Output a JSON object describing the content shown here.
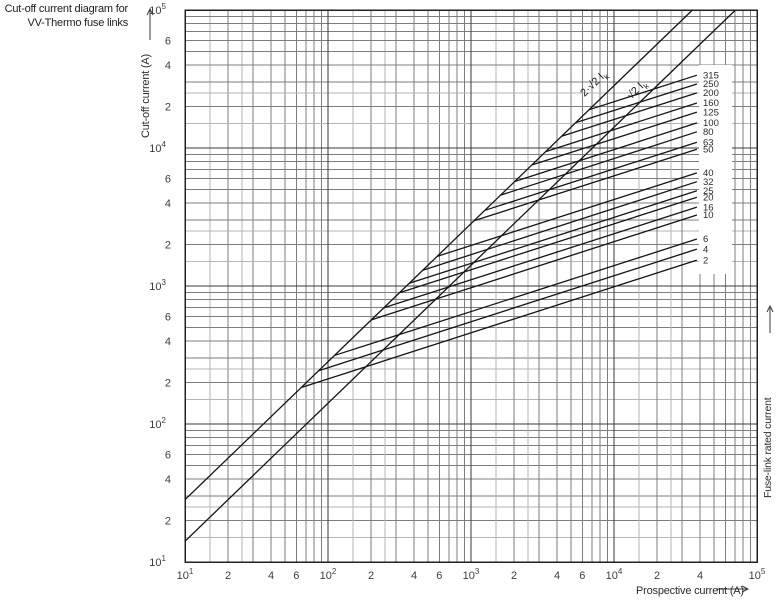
{
  "header": {
    "title_line1": "Cut-off current diagram for",
    "title_line2": "VV-Thermo fuse links"
  },
  "axes": {
    "x_label": "Prospective current (A)",
    "y_label": "Cut-off current (A)",
    "right_label": "Fuse-link rated current",
    "x_ticks": [
      {
        "v": 10,
        "m": "10",
        "e": "1"
      },
      {
        "v": 20,
        "m": "2"
      },
      {
        "v": 40,
        "m": "4"
      },
      {
        "v": 60,
        "m": "6"
      },
      {
        "v": 100,
        "m": "10",
        "e": "2"
      },
      {
        "v": 200,
        "m": "2"
      },
      {
        "v": 400,
        "m": "4"
      },
      {
        "v": 600,
        "m": "6"
      },
      {
        "v": 1000,
        "m": "10",
        "e": "3"
      },
      {
        "v": 2000,
        "m": "2"
      },
      {
        "v": 4000,
        "m": "4"
      },
      {
        "v": 6000,
        "m": "6"
      },
      {
        "v": 10000,
        "m": "10",
        "e": "4"
      },
      {
        "v": 20000,
        "m": "2"
      },
      {
        "v": 40000,
        "m": "4"
      },
      {
        "v": 100000,
        "m": "10",
        "e": "5"
      }
    ],
    "y_ticks": [
      {
        "v": 100000,
        "m": "10",
        "e": "5"
      },
      {
        "v": 60000,
        "m": "6"
      },
      {
        "v": 40000,
        "m": "4"
      },
      {
        "v": 20000,
        "m": "2"
      },
      {
        "v": 10000,
        "m": "10",
        "e": "4"
      },
      {
        "v": 6000,
        "m": "6"
      },
      {
        "v": 4000,
        "m": "4"
      },
      {
        "v": 2000,
        "m": "2"
      },
      {
        "v": 1000,
        "m": "10",
        "e": "3"
      },
      {
        "v": 600,
        "m": "6"
      },
      {
        "v": 400,
        "m": "4"
      },
      {
        "v": 200,
        "m": "2"
      },
      {
        "v": 100,
        "m": "10",
        "e": "2"
      },
      {
        "v": 60,
        "m": "6"
      },
      {
        "v": 40,
        "m": "4"
      },
      {
        "v": 20,
        "m": "2"
      },
      {
        "v": 10,
        "m": "10",
        "e": "1"
      }
    ]
  },
  "chart_data": {
    "type": "line",
    "x_scale": "log",
    "y_scale": "log",
    "x_range": [
      10,
      100000
    ],
    "y_range": [
      10,
      100000
    ],
    "grid": {
      "on": true,
      "minor_multiples": [
        1.5,
        2,
        2.5,
        3,
        4,
        5,
        6,
        7,
        8,
        9
      ]
    },
    "peak_lines": [
      {
        "label_main": "2·√2 I",
        "label_sub": "k",
        "factor": 2.8284
      },
      {
        "label_main": "√2 I",
        "label_sub": "k",
        "factor": 1.4142
      }
    ],
    "series_end_prospective_A": 38000,
    "series": [
      {
        "rating": "315",
        "branch_prospective_A": 6700,
        "cutoff_A_at_end": 33700
      },
      {
        "rating": "250",
        "branch_prospective_A": 5400,
        "cutoff_A_at_end": 29100
      },
      {
        "rating": "200",
        "branch_prospective_A": 4300,
        "cutoff_A_at_end": 25100
      },
      {
        "rating": "160",
        "branch_prospective_A": 3330,
        "cutoff_A_at_end": 21200
      },
      {
        "rating": "125",
        "branch_prospective_A": 2660,
        "cutoff_A_at_end": 18200
      },
      {
        "rating": "100",
        "branch_prospective_A": 2020,
        "cutoff_A_at_end": 15200
      },
      {
        "rating": "80",
        "branch_prospective_A": 1610,
        "cutoff_A_at_end": 13100
      },
      {
        "rating": "63",
        "branch_prospective_A": 1250,
        "cutoff_A_at_end": 11000
      },
      {
        "rating": "50",
        "branch_prospective_A": 1050,
        "cutoff_A_at_end": 9800
      },
      {
        "rating": "40",
        "branch_prospective_A": 580,
        "cutoff_A_at_end": 6600
      },
      {
        "rating": "32",
        "branch_prospective_A": 460,
        "cutoff_A_at_end": 5700
      },
      {
        "rating": "25",
        "branch_prospective_A": 370,
        "cutoff_A_at_end": 4900
      },
      {
        "rating": "20",
        "branch_prospective_A": 316,
        "cutoff_A_at_end": 4400
      },
      {
        "rating": "16",
        "branch_prospective_A": 246,
        "cutoff_A_at_end": 3730
      },
      {
        "rating": "10",
        "branch_prospective_A": 201,
        "cutoff_A_at_end": 3270
      },
      {
        "rating": "6",
        "branch_prospective_A": 111,
        "cutoff_A_at_end": 2190
      },
      {
        "rating": "4",
        "branch_prospective_A": 86,
        "cutoff_A_at_end": 1850
      },
      {
        "rating": "2",
        "branch_prospective_A": 65,
        "cutoff_A_at_end": 1540
      }
    ]
  }
}
